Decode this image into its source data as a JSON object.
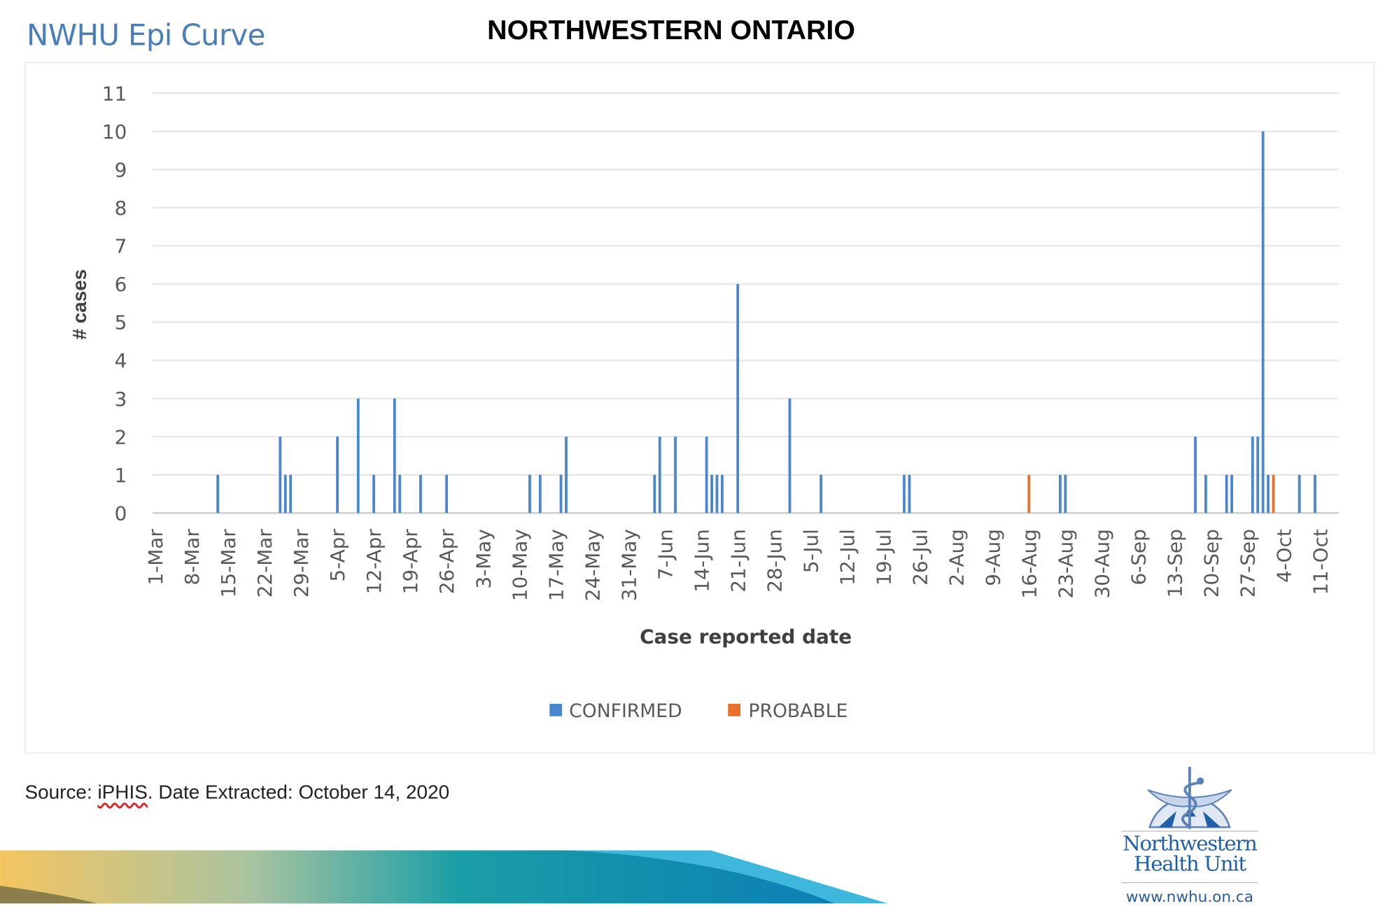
{
  "header": {
    "slide_title": "NWHU Epi Curve",
    "region_title": "NORTHWESTERN ONTARIO"
  },
  "chart_data": {
    "type": "bar",
    "title": "",
    "xlabel": "Case reported date",
    "ylabel": "# cases",
    "ylim": [
      0,
      11
    ],
    "yticks": [
      0,
      1,
      2,
      3,
      4,
      5,
      6,
      7,
      8,
      9,
      10,
      11
    ],
    "xlim": [
      "1-Mar",
      "11-Oct"
    ],
    "xtick_labels": [
      "1-Mar",
      "8-Mar",
      "15-Mar",
      "22-Mar",
      "29-Mar",
      "5-Apr",
      "12-Apr",
      "19-Apr",
      "26-Apr",
      "3-May",
      "10-May",
      "17-May",
      "24-May",
      "31-May",
      "7-Jun",
      "14-Jun",
      "21-Jun",
      "28-Jun",
      "5-Jul",
      "12-Jul",
      "19-Jul",
      "26-Jul",
      "2-Aug",
      "9-Aug",
      "16-Aug",
      "23-Aug",
      "30-Aug",
      "6-Sep",
      "13-Sep",
      "20-Sep",
      "27-Sep",
      "4-Oct",
      "11-Oct"
    ],
    "grid": true,
    "legend_position": "bottom",
    "series": [
      {
        "name": "CONFIRMED",
        "color": "#4a86d0",
        "points": [
          [
            "13-Mar",
            1
          ],
          [
            "25-Mar",
            2
          ],
          [
            "26-Mar",
            1
          ],
          [
            "27-Mar",
            1
          ],
          [
            "5-Apr",
            2
          ],
          [
            "9-Apr",
            3
          ],
          [
            "12-Apr",
            1
          ],
          [
            "16-Apr",
            3
          ],
          [
            "17-Apr",
            1
          ],
          [
            "21-Apr",
            1
          ],
          [
            "26-Apr",
            1
          ],
          [
            "12-May",
            1
          ],
          [
            "14-May",
            1
          ],
          [
            "18-May",
            1
          ],
          [
            "19-May",
            2
          ],
          [
            "5-Jun",
            1
          ],
          [
            "6-Jun",
            2
          ],
          [
            "9-Jun",
            2
          ],
          [
            "15-Jun",
            2
          ],
          [
            "16-Jun",
            1
          ],
          [
            "17-Jun",
            1
          ],
          [
            "18-Jun",
            1
          ],
          [
            "21-Jun",
            6
          ],
          [
            "1-Jul",
            3
          ],
          [
            "7-Jul",
            1
          ],
          [
            "23-Jul",
            1
          ],
          [
            "24-Jul",
            1
          ],
          [
            "22-Aug",
            1
          ],
          [
            "23-Aug",
            1
          ],
          [
            "17-Sep",
            2
          ],
          [
            "19-Sep",
            1
          ],
          [
            "23-Sep",
            1
          ],
          [
            "24-Sep",
            1
          ],
          [
            "28-Sep",
            2
          ],
          [
            "29-Sep",
            2
          ],
          [
            "30-Sep",
            10
          ],
          [
            "1-Oct",
            1
          ],
          [
            "7-Oct",
            1
          ],
          [
            "10-Oct",
            1
          ]
        ]
      },
      {
        "name": "PROBABLE",
        "color": "#e8702a",
        "points": [
          [
            "16-Aug",
            1
          ],
          [
            "2-Oct",
            1
          ]
        ]
      }
    ]
  },
  "footer": {
    "source_label": "Source: ",
    "source_name": "iPHIS",
    "source_rest": ". Date Extracted: October 14, 2020"
  },
  "logo": {
    "line1": "Northwestern",
    "line2": "Health Unit",
    "url": "www.nwhu.on.ca"
  }
}
